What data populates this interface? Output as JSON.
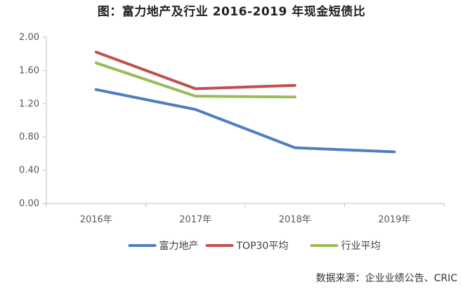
{
  "chart_data": {
    "type": "line",
    "title": "图：富力地产及行业 2016-2019 年现金短债比",
    "categories": [
      "2016年",
      "2017年",
      "2018年",
      "2019年"
    ],
    "yticks": [
      "0.00",
      "0.40",
      "0.80",
      "1.20",
      "1.60",
      "2.00"
    ],
    "ylim": [
      0,
      2.0
    ],
    "grid": false,
    "legend_position": "bottom",
    "series": [
      {
        "name": "富力地产",
        "color": "#4f7ec0",
        "values": [
          1.37,
          1.13,
          0.67,
          0.62
        ]
      },
      {
        "name": "TOP30平均",
        "color": "#c0504d",
        "values": [
          1.82,
          1.38,
          1.42,
          null
        ]
      },
      {
        "name": "行业平均",
        "color": "#9bbb59",
        "values": [
          1.69,
          1.29,
          1.28,
          null
        ]
      }
    ]
  },
  "source_text": "数据来源：企业业绩公告、CRIC"
}
